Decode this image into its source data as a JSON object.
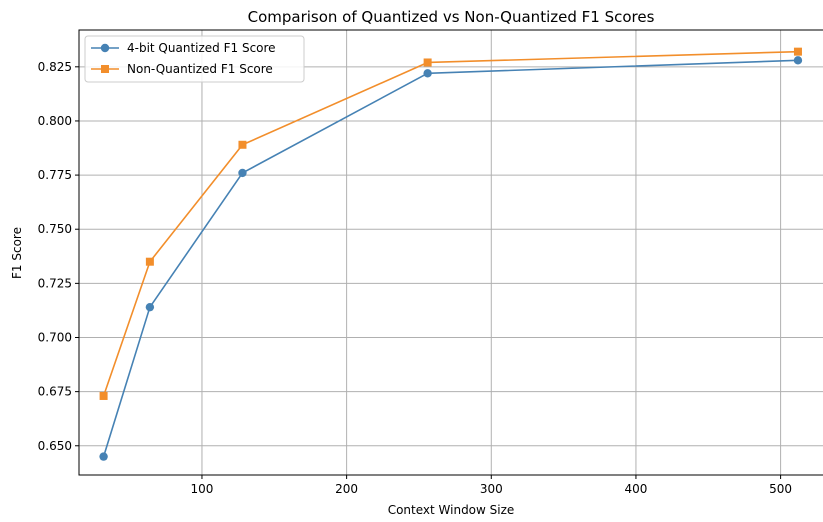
{
  "chart_data": {
    "type": "line",
    "title": "Comparison of Quantized vs Non-Quantized F1 Scores",
    "xlabel": "Context Window Size",
    "ylabel": "F1 Score",
    "x": [
      32,
      64,
      128,
      256,
      512
    ],
    "xlim": [
      15,
      530
    ],
    "ylim": [
      0.6365,
      0.842
    ],
    "xticks": [
      100,
      200,
      300,
      400,
      500
    ],
    "yticks": [
      0.65,
      0.675,
      0.7,
      0.725,
      0.75,
      0.775,
      0.8,
      0.825
    ],
    "ytick_labels": [
      "0.650",
      "0.675",
      "0.700",
      "0.725",
      "0.750",
      "0.775",
      "0.800",
      "0.825"
    ],
    "grid": true,
    "legend_position": "upper-left",
    "series": [
      {
        "name": "4-bit Quantized F1 Score",
        "values": [
          0.645,
          0.714,
          0.776,
          0.822,
          0.828
        ],
        "color": "#4682b4",
        "marker": "circle"
      },
      {
        "name": "Non-Quantized F1 Score",
        "values": [
          0.673,
          0.735,
          0.789,
          0.827,
          0.832
        ],
        "color": "#f28e2b",
        "marker": "square"
      }
    ]
  }
}
